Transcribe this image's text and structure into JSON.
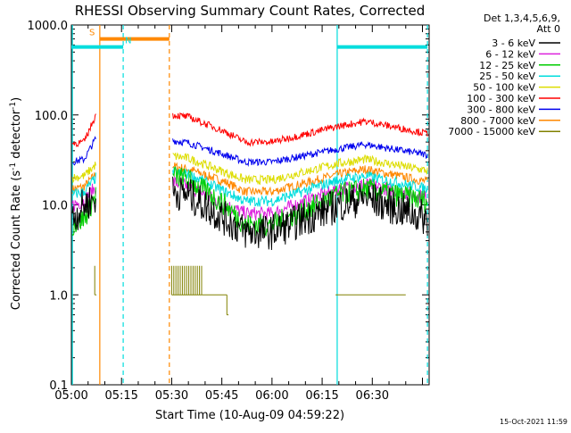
{
  "chart_data": {
    "type": "line",
    "title": "RHESSI Observing Summary Count Rates, Corrected",
    "xlabel": "Start Time (10-Aug-09 04:59:22)",
    "ylabel_parts": {
      "pre": "Corrected Count Rate (s",
      "sup1": "-1",
      "mid": " detector",
      "sup2": "-1",
      "post": ")"
    },
    "yscale": "log",
    "ylim": [
      0.1,
      1000
    ],
    "xlim_minutes": [
      0,
      107
    ],
    "x_tick_labels": [
      {
        "min": 0,
        "label": "05:00"
      },
      {
        "min": 15,
        "label": "05:15"
      },
      {
        "min": 30,
        "label": "05:30"
      },
      {
        "min": 45,
        "label": "05:45"
      },
      {
        "min": 60,
        "label": "06:00"
      },
      {
        "min": 75,
        "label": "06:15"
      },
      {
        "min": 90,
        "label": "06:30"
      }
    ],
    "y_tick_labels": [
      {
        "value": 0.1,
        "label": "0.1"
      },
      {
        "value": 1,
        "label": "1.0"
      },
      {
        "value": 10,
        "label": "10.0"
      },
      {
        "value": 100,
        "label": "100.0"
      },
      {
        "value": 1000,
        "label": "1000.0"
      }
    ],
    "legend_header": [
      "Det 1,3,4,5,6,9,",
      "Att 0"
    ],
    "legend_placement": "right",
    "series": [
      {
        "name": "3 - 6 keV",
        "color": "#000000",
        "pre": [
          7,
          10,
          12
        ],
        "post": [
          14,
          13,
          7,
          5,
          5,
          10,
          12,
          7
        ],
        "noise": 0.2
      },
      {
        "name": "6 - 12 keV",
        "color": "#dd22dd",
        "pre": [
          10,
          11,
          16
        ],
        "post": [
          18,
          16,
          10,
          8,
          8,
          15,
          17,
          12
        ],
        "noise": 0.08
      },
      {
        "name": "12 - 25 keV",
        "color": "#00cc00",
        "pre": [
          6,
          7,
          13
        ],
        "post": [
          21,
          19,
          10,
          6,
          6,
          13,
          15,
          11
        ],
        "noise": 0.13
      },
      {
        "name": "25 - 50 keV",
        "color": "#00dddd",
        "pre": [
          13,
          14,
          20
        ],
        "post": [
          23,
          22,
          14,
          11,
          11,
          19,
          21,
          15
        ],
        "noise": 0.06
      },
      {
        "name": "50 - 100 keV",
        "color": "#dddd00",
        "pre": [
          20,
          21,
          28
        ],
        "post": [
          35,
          33,
          23,
          19,
          19,
          29,
          32,
          24
        ],
        "noise": 0.05
      },
      {
        "name": "100 - 300 keV",
        "color": "#ff0000",
        "pre": [
          48,
          50,
          100
        ],
        "post": [
          100,
          95,
          65,
          50,
          50,
          75,
          85,
          62
        ],
        "noise": 0.04
      },
      {
        "name": "300 - 800 keV",
        "color": "#0000ee",
        "pre": [
          30,
          32,
          55
        ],
        "post": [
          52,
          49,
          36,
          30,
          30,
          42,
          47,
          36
        ],
        "noise": 0.04
      },
      {
        "name": "800 - 7000 keV",
        "color": "#ff8800",
        "pre": [
          15,
          16,
          22
        ],
        "post": [
          27,
          25,
          18,
          14,
          14,
          22,
          25,
          18
        ],
        "noise": 0.05
      },
      {
        "name": "7000 - 15000 keV",
        "color": "#808000",
        "pre": [],
        "post": [],
        "noise": 0
      }
    ],
    "segment_times_min": {
      "pre_start": 0.3,
      "pre_end": 7.3,
      "post_start": 30.3,
      "post_end": 106.5,
      "post_anchor_min": [
        30.3,
        35,
        46,
        52,
        60,
        80,
        88,
        106.5
      ]
    },
    "attenuator_bars": [
      {
        "label": "S",
        "color": "#ff8800",
        "start_min": 8.5,
        "end_min": 29.3,
        "value": 700
      },
      {
        "label": "N",
        "color": "#00dddd",
        "start_min": 0,
        "end_min": 15.5,
        "value": 570
      },
      {
        "label": "",
        "color": "#00dddd",
        "start_min": 79.5,
        "end_min": 106.5,
        "value": 570
      }
    ],
    "vertical_markers": [
      {
        "min": 0.3,
        "color": "#00dddd",
        "style": "solid"
      },
      {
        "min": 8.5,
        "color": "#ff8800",
        "style": "solid"
      },
      {
        "min": 15.5,
        "color": "#00dddd",
        "style": "dashed"
      },
      {
        "min": 29.3,
        "color": "#ff8800",
        "style": "dashed"
      },
      {
        "min": 79.5,
        "color": "#00dddd",
        "style": "solid"
      },
      {
        "min": 106.5,
        "color": "#00dddd",
        "style": "dashed"
      }
    ],
    "annotations": [
      {
        "text": "S",
        "min": 6.2,
        "value": 700,
        "color": "#ff8800"
      },
      {
        "text": "N",
        "min": 17.0,
        "value": 570,
        "color": "#00dddd"
      }
    ],
    "olive_events": [
      {
        "start_min": 7.0,
        "end_min": 7.5,
        "value": 1.0,
        "high": 2.1
      },
      {
        "start_min": 30.0,
        "end_min": 39.0,
        "value": 1.0,
        "high": 2.1
      },
      {
        "start_min": 39.0,
        "end_min": 46.5,
        "value": 1.0,
        "high": 1.0
      },
      {
        "start_min": 46.5,
        "end_min": 47.0,
        "value": 0.6,
        "high": 1.0
      },
      {
        "start_min": 79.0,
        "end_min": 100.0,
        "value": 1.0,
        "high": 1.0
      }
    ],
    "timestamp": "15-Oct-2021 11:59"
  }
}
